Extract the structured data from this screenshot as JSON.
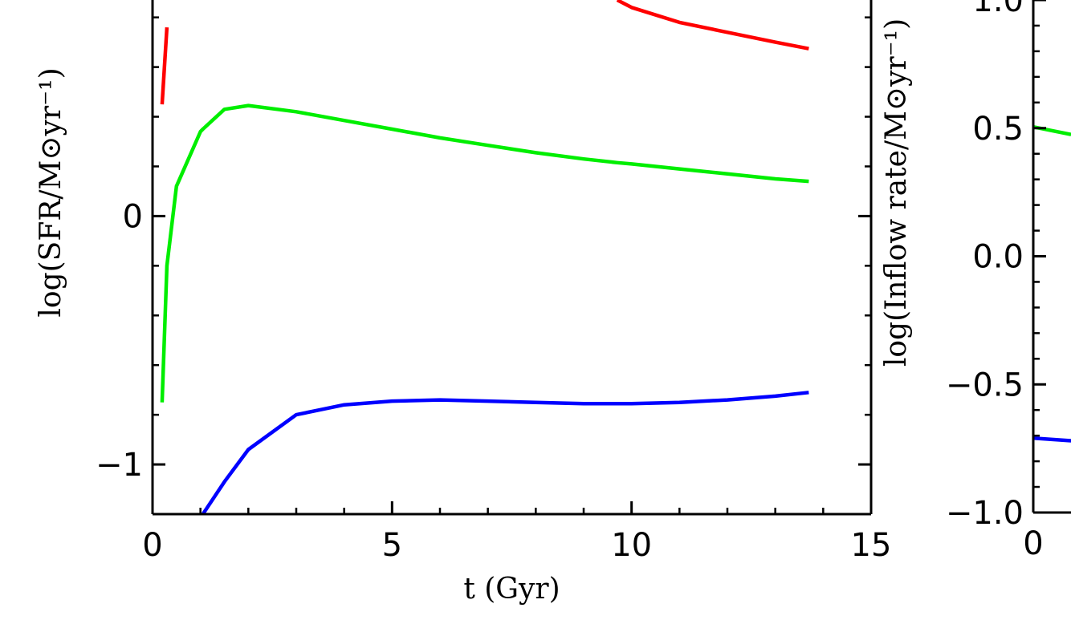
{
  "chart_data": [
    {
      "type": "line",
      "xlabel": "t (Gyr)",
      "ylabel": "log(SFR/M⊙yr⁻¹)",
      "x": [
        0.2,
        0.3,
        0.5,
        1,
        1.05,
        1.5,
        2,
        3,
        4,
        5,
        6,
        7,
        8,
        9,
        9.7,
        10,
        11,
        12,
        13,
        13.7
      ],
      "series": [
        {
          "color": "#ff0000",
          "values": [
            0.45,
            0.76,
            null,
            null,
            null,
            null,
            null,
            null,
            null,
            null,
            null,
            null,
            null,
            null,
            0.87,
            0.84,
            0.78,
            0.74,
            0.7,
            0.674
          ]
        },
        {
          "color": "#00ee00",
          "values": [
            -0.75,
            -0.2,
            0.12,
            0.34,
            0.35,
            0.43,
            0.445,
            0.42,
            0.385,
            0.35,
            0.315,
            0.285,
            0.255,
            0.23,
            0.215,
            0.21,
            0.19,
            0.17,
            0.15,
            0.14
          ]
        },
        {
          "color": "#0000ff",
          "values": [
            null,
            null,
            null,
            null,
            -1.2,
            -1.07,
            -0.94,
            -0.8,
            -0.76,
            -0.745,
            -0.74,
            -0.745,
            -0.75,
            -0.755,
            -0.755,
            -0.755,
            -0.75,
            -0.74,
            -0.725,
            -0.71
          ]
        }
      ],
      "xlim": [
        0,
        15
      ],
      "xticks": [
        0,
        5,
        10,
        15
      ],
      "xminorticks": [
        1,
        2,
        3,
        4,
        6,
        7,
        8,
        9,
        11,
        12,
        13,
        14
      ],
      "ylim": [
        -1.2,
        0.87
      ],
      "yticks": [
        {
          "value": -1,
          "label": "−1"
        },
        0
      ],
      "yminorticks": [
        -0.8,
        -0.6,
        -0.4,
        -0.2,
        0.2,
        0.4,
        0.6,
        0.8
      ]
    },
    {
      "type": "line",
      "ylabel": "log(Inflow rate/M⊙yr⁻¹)",
      "x": [
        0,
        0.79
      ],
      "series": [
        {
          "color": "#00ee00",
          "values": [
            0.505,
            0.475
          ]
        },
        {
          "color": "#0000ff",
          "values": [
            -0.71,
            -0.72
          ]
        }
      ],
      "xlim": [
        0,
        15
      ],
      "xticks": [
        0
      ],
      "ylim": [
        -1,
        1
      ],
      "yticks": [
        {
          "value": -1,
          "label": "−1.0"
        },
        {
          "value": -0.5,
          "label": "−0.5"
        },
        {
          "value": 0,
          "label": "0.0"
        },
        0.5,
        {
          "value": 1,
          "label": "1.0"
        }
      ],
      "yminorticks": [
        -0.9,
        -0.8,
        -0.7,
        -0.6,
        -0.4,
        -0.3,
        -0.2,
        -0.1,
        0.1,
        0.2,
        0.3,
        0.4,
        0.6,
        0.7,
        0.8,
        0.9
      ]
    }
  ]
}
